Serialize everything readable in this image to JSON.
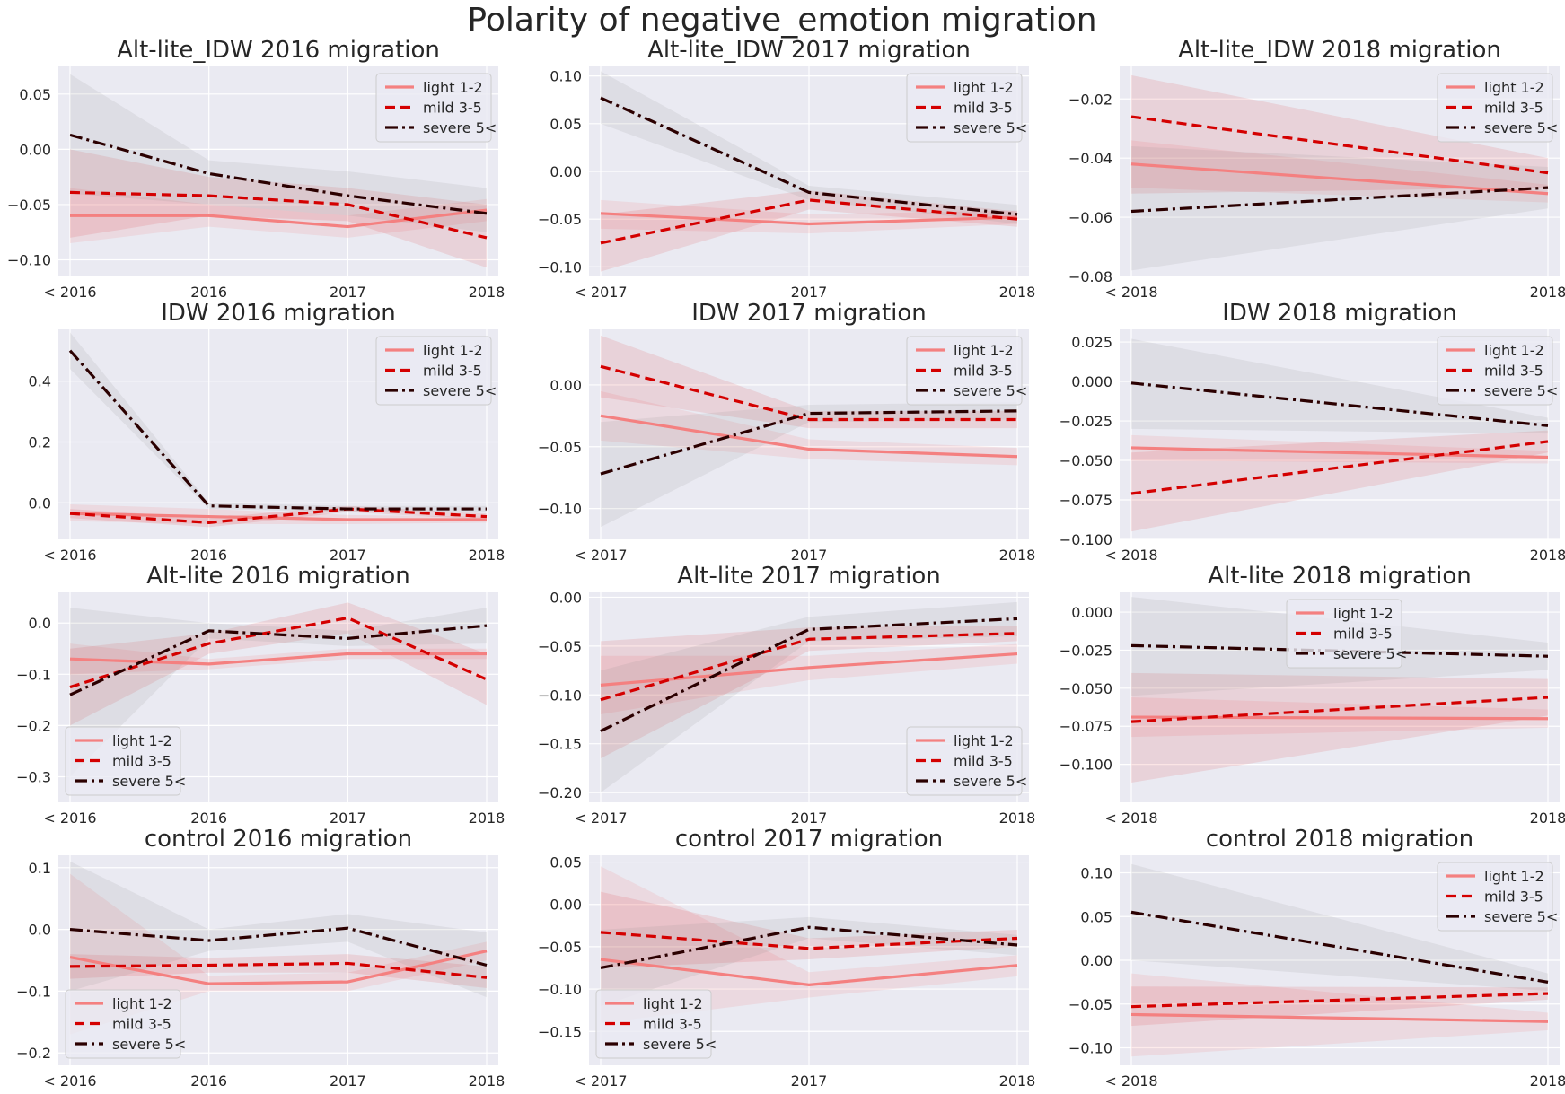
{
  "figure_title": "Polarity of negative_emotion migration",
  "colors": {
    "plot_background": "#eaeaf2",
    "grid": "#ffffff",
    "light": "#f48080",
    "mild": "#d40000",
    "severe": "#2b0000",
    "band_light": "#f48080",
    "band_mild": "#d40000",
    "band_severe": "#808080"
  },
  "legend_labels": [
    "light 1-2",
    "mild 3-5",
    "severe 5<"
  ],
  "chart_data": [
    {
      "type": "line",
      "title": "Alt-lite_IDW 2016 migration",
      "categories": [
        "< 2016",
        "2016",
        "2017",
        "2018"
      ],
      "ylim": [
        -0.115,
        0.075
      ],
      "yticks": [
        0.05,
        0.0,
        -0.05,
        -0.1
      ],
      "ytick_labels": [
        "0.05",
        "0.00",
        "−0.05",
        "−0.10"
      ],
      "legend_loc": "upper right",
      "grid": true,
      "series": [
        {
          "name": "light 1-2",
          "style": "solid",
          "values": [
            -0.06,
            -0.06,
            -0.07,
            -0.055
          ],
          "ci_low": [
            -0.085,
            -0.07,
            -0.08,
            -0.065
          ],
          "ci_high": [
            -0.035,
            -0.05,
            -0.06,
            -0.045
          ]
        },
        {
          "name": "mild 3-5",
          "style": "dashed",
          "values": [
            -0.039,
            -0.042,
            -0.05,
            -0.08
          ],
          "ci_low": [
            -0.08,
            -0.06,
            -0.065,
            -0.107
          ],
          "ci_high": [
            0.0,
            -0.025,
            -0.035,
            -0.05
          ]
        },
        {
          "name": "severe 5<",
          "style": "dashdot",
          "values": [
            0.013,
            -0.022,
            -0.042,
            -0.058
          ],
          "ci_low": [
            -0.04,
            -0.05,
            -0.06,
            -0.075
          ],
          "ci_high": [
            0.068,
            -0.01,
            -0.02,
            -0.035
          ]
        }
      ]
    },
    {
      "type": "line",
      "title": "Alt-lite_IDW 2017 migration",
      "categories": [
        "< 2017",
        "2017",
        "2018"
      ],
      "ylim": [
        -0.11,
        0.11
      ],
      "yticks": [
        0.1,
        0.05,
        0.0,
        -0.05,
        -0.1
      ],
      "ytick_labels": [
        "0.10",
        "0.05",
        "0.00",
        "−0.05",
        "−0.10"
      ],
      "legend_loc": "upper right",
      "grid": true,
      "series": [
        {
          "name": "light 1-2",
          "style": "solid",
          "values": [
            -0.044,
            -0.055,
            -0.048
          ],
          "ci_low": [
            -0.06,
            -0.065,
            -0.055
          ],
          "ci_high": [
            -0.03,
            -0.045,
            -0.041
          ]
        },
        {
          "name": "mild 3-5",
          "style": "dashed",
          "values": [
            -0.075,
            -0.03,
            -0.05
          ],
          "ci_low": [
            -0.105,
            -0.04,
            -0.058
          ],
          "ci_high": [
            -0.045,
            -0.02,
            -0.042
          ]
        },
        {
          "name": "severe 5<",
          "style": "dashdot",
          "values": [
            0.077,
            -0.022,
            -0.045
          ],
          "ci_low": [
            0.05,
            -0.03,
            -0.055
          ],
          "ci_high": [
            0.105,
            -0.015,
            -0.035
          ]
        }
      ]
    },
    {
      "type": "line",
      "title": "Alt-lite_IDW 2018 migration",
      "categories": [
        "< 2018",
        "2018"
      ],
      "ylim": [
        -0.08,
        -0.009
      ],
      "yticks": [
        -0.02,
        -0.04,
        -0.06,
        -0.08
      ],
      "ytick_labels": [
        "−0.02",
        "−0.04",
        "−0.06",
        "−0.08"
      ],
      "legend_loc": "upper right",
      "grid": true,
      "series": [
        {
          "name": "light 1-2",
          "style": "solid",
          "values": [
            -0.042,
            -0.052
          ],
          "ci_low": [
            -0.05,
            -0.055
          ],
          "ci_high": [
            -0.034,
            -0.049
          ]
        },
        {
          "name": "mild 3-5",
          "style": "dashed",
          "values": [
            -0.026,
            -0.045
          ],
          "ci_low": [
            -0.052,
            -0.05
          ],
          "ci_high": [
            -0.012,
            -0.04
          ]
        },
        {
          "name": "severe 5<",
          "style": "dashdot",
          "values": [
            -0.058,
            -0.05
          ],
          "ci_low": [
            -0.078,
            -0.057
          ],
          "ci_high": [
            -0.036,
            -0.043
          ]
        }
      ]
    },
    {
      "type": "line",
      "title": "IDW 2016 migration",
      "categories": [
        "< 2016",
        "2016",
        "2017",
        "2018"
      ],
      "ylim": [
        -0.12,
        0.57
      ],
      "yticks": [
        0.4,
        0.2,
        0.0
      ],
      "ytick_labels": [
        "0.4",
        "0.2",
        "0.0"
      ],
      "legend_loc": "upper right",
      "grid": true,
      "series": [
        {
          "name": "light 1-2",
          "style": "solid",
          "values": [
            -0.035,
            -0.045,
            -0.055,
            -0.055
          ],
          "ci_low": [
            -0.06,
            -0.07,
            -0.07,
            -0.065
          ],
          "ci_high": [
            -0.005,
            -0.02,
            -0.04,
            -0.045
          ]
        },
        {
          "name": "mild 3-5",
          "style": "dashed",
          "values": [
            -0.035,
            -0.065,
            -0.02,
            -0.045
          ],
          "ci_low": [
            -0.05,
            -0.08,
            -0.03,
            -0.055
          ],
          "ci_high": [
            -0.02,
            -0.05,
            -0.01,
            -0.035
          ]
        },
        {
          "name": "severe 5<",
          "style": "dashdot",
          "values": [
            0.5,
            -0.01,
            -0.02,
            -0.02
          ],
          "ci_low": [
            0.44,
            -0.02,
            -0.03,
            -0.03
          ],
          "ci_high": [
            0.56,
            0.0,
            -0.01,
            -0.01
          ]
        }
      ]
    },
    {
      "type": "line",
      "title": "IDW 2017 migration",
      "categories": [
        "< 2017",
        "2017",
        "2018"
      ],
      "ylim": [
        -0.125,
        0.045
      ],
      "yticks": [
        0.0,
        -0.05,
        -0.1
      ],
      "ytick_labels": [
        "0.00",
        "−0.05",
        "−0.10"
      ],
      "legend_loc": "upper right",
      "grid": true,
      "series": [
        {
          "name": "light 1-2",
          "style": "solid",
          "values": [
            -0.025,
            -0.052,
            -0.058
          ],
          "ci_low": [
            -0.045,
            -0.06,
            -0.065
          ],
          "ci_high": [
            -0.005,
            -0.044,
            -0.051
          ]
        },
        {
          "name": "mild 3-5",
          "style": "dashed",
          "values": [
            0.015,
            -0.028,
            -0.028
          ],
          "ci_low": [
            -0.01,
            -0.035,
            -0.035
          ],
          "ci_high": [
            0.04,
            -0.021,
            -0.021
          ]
        },
        {
          "name": "severe 5<",
          "style": "dashdot",
          "values": [
            -0.072,
            -0.023,
            -0.021
          ],
          "ci_low": [
            -0.115,
            -0.03,
            -0.028
          ],
          "ci_high": [
            -0.03,
            -0.016,
            -0.014
          ]
        }
      ]
    },
    {
      "type": "line",
      "title": "IDW 2018 migration",
      "categories": [
        "< 2018",
        "2018"
      ],
      "ylim": [
        -0.1,
        0.033
      ],
      "yticks": [
        0.025,
        0.0,
        -0.025,
        -0.05,
        -0.075,
        -0.1
      ],
      "ytick_labels": [
        "0.025",
        "0.000",
        "−0.025",
        "−0.050",
        "−0.075",
        "−0.100"
      ],
      "legend_loc": "upper right",
      "grid": true,
      "series": [
        {
          "name": "light 1-2",
          "style": "solid",
          "values": [
            -0.042,
            -0.048
          ],
          "ci_low": [
            -0.05,
            -0.052
          ],
          "ci_high": [
            -0.034,
            -0.044
          ]
        },
        {
          "name": "mild 3-5",
          "style": "dashed",
          "values": [
            -0.071,
            -0.038
          ],
          "ci_low": [
            -0.095,
            -0.045
          ],
          "ci_high": [
            -0.045,
            -0.031
          ]
        },
        {
          "name": "severe 5<",
          "style": "dashdot",
          "values": [
            -0.001,
            -0.028
          ],
          "ci_low": [
            -0.03,
            -0.033
          ],
          "ci_high": [
            0.027,
            -0.023
          ]
        }
      ]
    },
    {
      "type": "line",
      "title": "Alt-lite 2016 migration",
      "categories": [
        "< 2016",
        "2016",
        "2017",
        "2018"
      ],
      "ylim": [
        -0.35,
        0.06
      ],
      "yticks": [
        0.0,
        -0.1,
        -0.2,
        -0.3
      ],
      "ytick_labels": [
        "0.0",
        "−0.1",
        "−0.2",
        "−0.3"
      ],
      "legend_loc": "lower left",
      "grid": true,
      "series": [
        {
          "name": "light 1-2",
          "style": "solid",
          "values": [
            -0.07,
            -0.08,
            -0.06,
            -0.06
          ],
          "ci_low": [
            -0.1,
            -0.09,
            -0.07,
            -0.07
          ],
          "ci_high": [
            -0.04,
            -0.07,
            -0.05,
            -0.05
          ]
        },
        {
          "name": "mild 3-5",
          "style": "dashed",
          "values": [
            -0.125,
            -0.04,
            0.01,
            -0.11
          ],
          "ci_low": [
            -0.2,
            -0.06,
            -0.02,
            -0.16
          ],
          "ci_high": [
            -0.05,
            -0.02,
            0.04,
            -0.06
          ]
        },
        {
          "name": "severe 5<",
          "style": "dashdot",
          "values": [
            -0.14,
            -0.015,
            -0.03,
            -0.005
          ],
          "ci_low": [
            -0.3,
            -0.03,
            -0.045,
            -0.04
          ],
          "ci_high": [
            0.03,
            0.0,
            -0.015,
            0.03
          ]
        }
      ]
    },
    {
      "type": "line",
      "title": "Alt-lite 2017 migration",
      "categories": [
        "< 2017",
        "2017",
        "2018"
      ],
      "ylim": [
        -0.21,
        0.005
      ],
      "yticks": [
        0.0,
        -0.05,
        -0.1,
        -0.15,
        -0.2
      ],
      "ytick_labels": [
        "0.00",
        "−0.05",
        "−0.10",
        "−0.15",
        "−0.20"
      ],
      "legend_loc": "lower right",
      "grid": true,
      "series": [
        {
          "name": "light 1-2",
          "style": "solid",
          "values": [
            -0.09,
            -0.072,
            -0.058
          ],
          "ci_low": [
            -0.12,
            -0.085,
            -0.068
          ],
          "ci_high": [
            -0.06,
            -0.06,
            -0.048
          ]
        },
        {
          "name": "mild 3-5",
          "style": "dashed",
          "values": [
            -0.105,
            -0.043,
            -0.037
          ],
          "ci_low": [
            -0.165,
            -0.055,
            -0.045
          ],
          "ci_high": [
            -0.045,
            -0.031,
            -0.029
          ]
        },
        {
          "name": "severe 5<",
          "style": "dashdot",
          "values": [
            -0.137,
            -0.033,
            -0.022
          ],
          "ci_low": [
            -0.2,
            -0.045,
            -0.04
          ],
          "ci_high": [
            -0.075,
            -0.02,
            -0.005
          ]
        }
      ]
    },
    {
      "type": "line",
      "title": "Alt-lite 2018 migration",
      "categories": [
        "< 2018",
        "2018"
      ],
      "ylim": [
        -0.125,
        0.013
      ],
      "yticks": [
        0.0,
        -0.025,
        -0.05,
        -0.075,
        -0.1
      ],
      "ytick_labels": [
        "0.000",
        "−0.025",
        "−0.050",
        "−0.075",
        "−0.100"
      ],
      "legend_loc": "upper center",
      "grid": true,
      "series": [
        {
          "name": "light 1-2",
          "style": "solid",
          "values": [
            -0.069,
            -0.07
          ],
          "ci_low": [
            -0.082,
            -0.076
          ],
          "ci_high": [
            -0.056,
            -0.064
          ]
        },
        {
          "name": "mild 3-5",
          "style": "dashed",
          "values": [
            -0.072,
            -0.056
          ],
          "ci_low": [
            -0.112,
            -0.068
          ],
          "ci_high": [
            -0.04,
            -0.044
          ]
        },
        {
          "name": "severe 5<",
          "style": "dashdot",
          "values": [
            -0.022,
            -0.029
          ],
          "ci_low": [
            -0.055,
            -0.038
          ],
          "ci_high": [
            0.01,
            -0.02
          ]
        }
      ]
    },
    {
      "type": "line",
      "title": "control 2016 migration",
      "categories": [
        "< 2016",
        "2016",
        "2017",
        "2018"
      ],
      "ylim": [
        -0.22,
        0.12
      ],
      "yticks": [
        0.1,
        0.0,
        -0.1,
        -0.2
      ],
      "ytick_labels": [
        "0.1",
        "0.0",
        "−0.1",
        "−0.2"
      ],
      "legend_loc": "lower left",
      "grid": true,
      "series": [
        {
          "name": "light 1-2",
          "style": "solid",
          "values": [
            -0.045,
            -0.088,
            -0.085,
            -0.035
          ],
          "ci_low": [
            -0.17,
            -0.1,
            -0.1,
            -0.05
          ],
          "ci_high": [
            0.09,
            -0.075,
            -0.07,
            -0.02
          ]
        },
        {
          "name": "mild 3-5",
          "style": "dashed",
          "values": [
            -0.06,
            -0.058,
            -0.055,
            -0.078
          ],
          "ci_low": [
            -0.08,
            -0.07,
            -0.07,
            -0.095
          ],
          "ci_high": [
            -0.04,
            -0.046,
            -0.04,
            -0.06
          ]
        },
        {
          "name": "severe 5<",
          "style": "dashdot",
          "values": [
            0.0,
            -0.018,
            0.002,
            -0.058
          ],
          "ci_low": [
            -0.1,
            -0.035,
            -0.02,
            -0.11
          ],
          "ci_high": [
            0.11,
            0.0,
            0.025,
            -0.005
          ]
        }
      ]
    },
    {
      "type": "line",
      "title": "control 2017 migration",
      "categories": [
        "< 2017",
        "2017",
        "2018"
      ],
      "ylim": [
        -0.19,
        0.058
      ],
      "yticks": [
        0.05,
        0.0,
        -0.05,
        -0.1,
        -0.15
      ],
      "ytick_labels": [
        "0.05",
        "0.00",
        "−0.05",
        "−0.10",
        "−0.15"
      ],
      "legend_loc": "lower left",
      "grid": true,
      "series": [
        {
          "name": "light 1-2",
          "style": "solid",
          "values": [
            -0.065,
            -0.095,
            -0.072
          ],
          "ci_low": [
            -0.14,
            -0.11,
            -0.085
          ],
          "ci_high": [
            0.045,
            -0.08,
            -0.06
          ]
        },
        {
          "name": "mild 3-5",
          "style": "dashed",
          "values": [
            -0.033,
            -0.052,
            -0.04
          ],
          "ci_low": [
            -0.075,
            -0.065,
            -0.05
          ],
          "ci_high": [
            0.015,
            -0.04,
            -0.03
          ]
        },
        {
          "name": "severe 5<",
          "style": "dashdot",
          "values": [
            -0.075,
            -0.027,
            -0.048
          ],
          "ci_low": [
            -0.12,
            -0.04,
            -0.06
          ],
          "ci_high": [
            -0.03,
            -0.015,
            -0.036
          ]
        }
      ]
    },
    {
      "type": "line",
      "title": "control 2018 migration",
      "categories": [
        "< 2018",
        "2018"
      ],
      "ylim": [
        -0.12,
        0.12
      ],
      "yticks": [
        0.1,
        0.05,
        0.0,
        -0.05,
        -0.1
      ],
      "ytick_labels": [
        "0.10",
        "0.05",
        "0.00",
        "−0.05",
        "−0.10"
      ],
      "legend_loc": "upper right",
      "grid": true,
      "series": [
        {
          "name": "light 1-2",
          "style": "solid",
          "values": [
            -0.062,
            -0.07
          ],
          "ci_low": [
            -0.11,
            -0.08
          ],
          "ci_high": [
            -0.015,
            -0.06
          ]
        },
        {
          "name": "mild 3-5",
          "style": "dashed",
          "values": [
            -0.053,
            -0.038
          ],
          "ci_low": [
            -0.075,
            -0.045
          ],
          "ci_high": [
            -0.03,
            -0.031
          ]
        },
        {
          "name": "severe 5<",
          "style": "dashdot",
          "values": [
            0.055,
            -0.025
          ],
          "ci_low": [
            0.0,
            -0.035
          ],
          "ci_high": [
            0.11,
            -0.015
          ]
        }
      ]
    }
  ]
}
